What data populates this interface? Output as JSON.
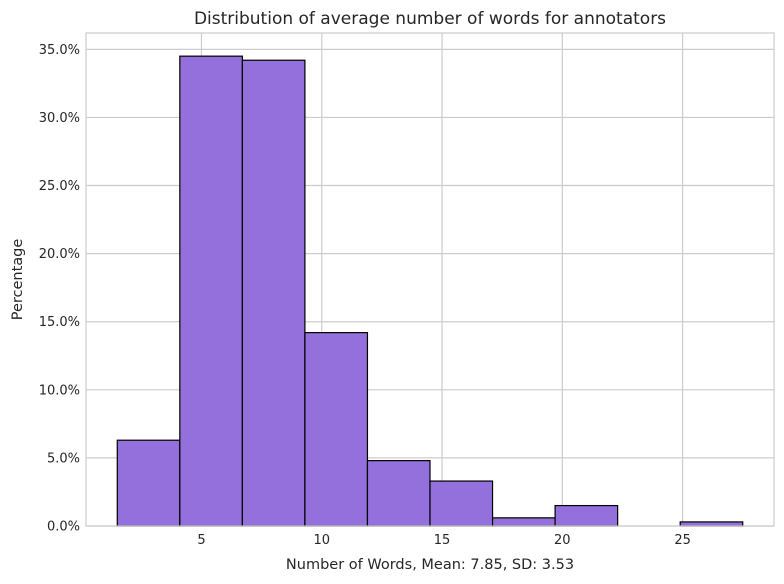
{
  "chart_data": {
    "type": "bar",
    "title": "Distribution of average number of words for annotators",
    "xlabel": "Number of Words, Mean: 7.85, SD: 3.53",
    "ylabel": "Percentage",
    "bins": [
      {
        "start": 1.5,
        "end": 4.1,
        "value": 6.3
      },
      {
        "start": 4.1,
        "end": 6.7,
        "value": 34.5
      },
      {
        "start": 6.7,
        "end": 9.3,
        "value": 34.2
      },
      {
        "start": 9.3,
        "end": 11.9,
        "value": 14.2
      },
      {
        "start": 11.9,
        "end": 14.5,
        "value": 4.8
      },
      {
        "start": 14.5,
        "end": 17.1,
        "value": 3.3
      },
      {
        "start": 17.1,
        "end": 19.7,
        "value": 0.6
      },
      {
        "start": 19.7,
        "end": 22.3,
        "value": 1.5
      },
      {
        "start": 22.3,
        "end": 24.9,
        "value": 0.0
      },
      {
        "start": 24.9,
        "end": 27.5,
        "value": 0.3
      }
    ],
    "x_ticks": [
      5,
      10,
      15,
      20,
      25
    ],
    "y_ticks": [
      0,
      5,
      10,
      15,
      20,
      25,
      30,
      35
    ],
    "y_tick_labels": [
      "0.0%",
      "5.0%",
      "10.0%",
      "15.0%",
      "20.0%",
      "25.0%",
      "30.0%",
      "35.0%"
    ],
    "xlim": [
      0.2,
      28.8
    ],
    "ylim": [
      0,
      36.2
    ],
    "grid": true,
    "colors": {
      "bar_fill": "#9370db",
      "bar_edge": "#000000",
      "grid": "#cccccc"
    }
  }
}
